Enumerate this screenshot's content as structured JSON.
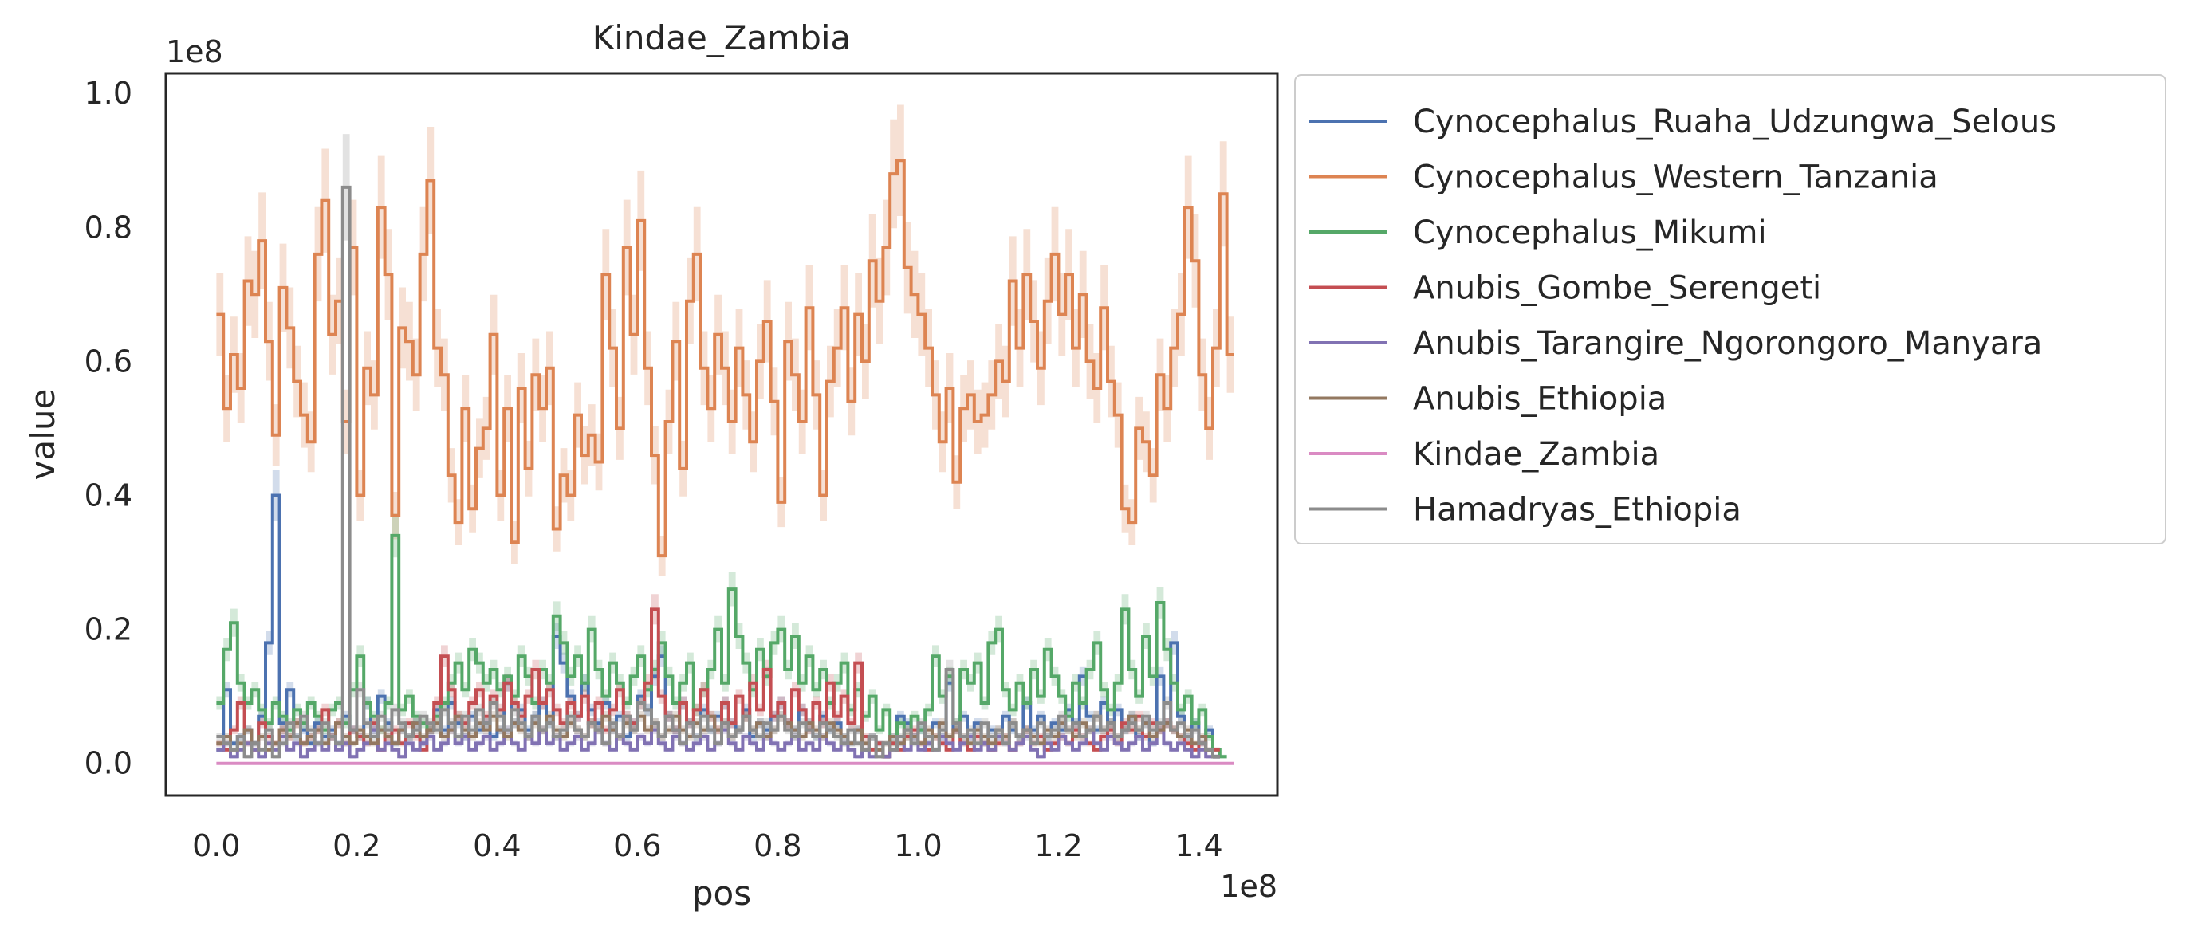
{
  "chart_data": {
    "type": "line",
    "title": "Kindae_Zambia",
    "xlabel": "pos",
    "ylabel": "value",
    "x_offset_label": "1e8",
    "y_offset_label": "1e8",
    "xlim": [
      -0.072,
      1.512
    ],
    "ylim": [
      -0.048,
      1.03
    ],
    "x_ticks": [
      0.0,
      0.2,
      0.4,
      0.6,
      0.8,
      1.0,
      1.2,
      1.4
    ],
    "x_tick_labels": [
      "0.0",
      "0.2",
      "0.4",
      "0.6",
      "0.8",
      "1.0",
      "1.2",
      "1.4"
    ],
    "y_ticks": [
      0.0,
      0.2,
      0.4,
      0.6,
      0.8,
      1.0
    ],
    "y_tick_labels": [
      "0.0",
      "0.2",
      "0.4",
      "0.6",
      "0.8",
      "1.0"
    ],
    "grid": false,
    "legend_position": "outside-upper-right",
    "step_width": 0.01,
    "band_fraction": 0.09,
    "series": [
      {
        "name": "Cynocephalus_Ruaha_Udzungwa_Selous",
        "color": "#4c72b0",
        "values": [
          0.02,
          0.11,
          0.03,
          0.04,
          0.05,
          0.03,
          0.07,
          0.18,
          0.4,
          0.06,
          0.11,
          0.04,
          0.05,
          0.03,
          0.06,
          0.04,
          0.05,
          0.03,
          0.07,
          0.05,
          0.04,
          0.09,
          0.05,
          0.1,
          0.06,
          0.03,
          0.05,
          0.04,
          0.06,
          0.03,
          0.05,
          0.08,
          0.05,
          0.09,
          0.06,
          0.04,
          0.07,
          0.05,
          0.06,
          0.04,
          0.05,
          0.12,
          0.06,
          0.08,
          0.05,
          0.07,
          0.09,
          0.06,
          0.19,
          0.15,
          0.1,
          0.07,
          0.12,
          0.08,
          0.06,
          0.09,
          0.05,
          0.07,
          0.04,
          0.06,
          0.1,
          0.08,
          0.13,
          0.16,
          0.07,
          0.05,
          0.09,
          0.06,
          0.04,
          0.08,
          0.05,
          0.07,
          0.09,
          0.06,
          0.05,
          0.08,
          0.04,
          0.06,
          0.05,
          0.07,
          0.09,
          0.06,
          0.05,
          0.08,
          0.06,
          0.04,
          0.07,
          0.05,
          0.06,
          0.04,
          0.03,
          0.05,
          0.02,
          0.04,
          0.03,
          0.01,
          0.04,
          0.07,
          0.06,
          0.04,
          0.05,
          0.03,
          0.06,
          0.04,
          0.12,
          0.05,
          0.07,
          0.04,
          0.06,
          0.03,
          0.05,
          0.04,
          0.07,
          0.05,
          0.04,
          0.09,
          0.05,
          0.07,
          0.04,
          0.06,
          0.05,
          0.08,
          0.06,
          0.13,
          0.07,
          0.05,
          0.09,
          0.06,
          0.08,
          0.05,
          0.07,
          0.04,
          0.06,
          0.03,
          0.13,
          0.06,
          0.18,
          0.07,
          0.04,
          0.06,
          0.03,
          0.05,
          0.01
        ]
      },
      {
        "name": "Cynocephalus_Western_Tanzania",
        "color": "#dd8452",
        "values": [
          0.67,
          0.53,
          0.61,
          0.56,
          0.72,
          0.7,
          0.78,
          0.63,
          0.49,
          0.71,
          0.65,
          0.57,
          0.52,
          0.48,
          0.76,
          0.84,
          0.64,
          0.69,
          0.51,
          0.77,
          0.4,
          0.59,
          0.55,
          0.83,
          0.73,
          0.37,
          0.65,
          0.63,
          0.58,
          0.76,
          0.87,
          0.62,
          0.58,
          0.43,
          0.36,
          0.53,
          0.38,
          0.47,
          0.5,
          0.64,
          0.4,
          0.53,
          0.33,
          0.56,
          0.44,
          0.58,
          0.53,
          0.59,
          0.35,
          0.43,
          0.4,
          0.52,
          0.46,
          0.49,
          0.45,
          0.73,
          0.62,
          0.5,
          0.77,
          0.64,
          0.81,
          0.59,
          0.46,
          0.31,
          0.51,
          0.63,
          0.44,
          0.69,
          0.76,
          0.59,
          0.53,
          0.64,
          0.59,
          0.51,
          0.62,
          0.55,
          0.48,
          0.6,
          0.66,
          0.54,
          0.39,
          0.63,
          0.58,
          0.51,
          0.68,
          0.55,
          0.4,
          0.57,
          0.62,
          0.68,
          0.54,
          0.67,
          0.6,
          0.75,
          0.69,
          0.77,
          0.88,
          0.9,
          0.74,
          0.7,
          0.67,
          0.62,
          0.55,
          0.48,
          0.56,
          0.42,
          0.53,
          0.55,
          0.51,
          0.52,
          0.55,
          0.6,
          0.57,
          0.72,
          0.62,
          0.73,
          0.66,
          0.59,
          0.69,
          0.76,
          0.67,
          0.73,
          0.62,
          0.7,
          0.6,
          0.56,
          0.68,
          0.57,
          0.52,
          0.38,
          0.36,
          0.5,
          0.48,
          0.43,
          0.58,
          0.53,
          0.62,
          0.67,
          0.83,
          0.75,
          0.58,
          0.5,
          0.62,
          0.85,
          0.61
        ]
      },
      {
        "name": "Cynocephalus_Mikumi",
        "color": "#55a868",
        "values": [
          0.09,
          0.17,
          0.21,
          0.12,
          0.09,
          0.11,
          0.08,
          0.06,
          0.09,
          0.07,
          0.05,
          0.08,
          0.06,
          0.09,
          0.07,
          0.05,
          0.08,
          0.09,
          0.06,
          0.11,
          0.16,
          0.09,
          0.07,
          0.05,
          0.09,
          0.34,
          0.08,
          0.1,
          0.07,
          0.06,
          0.05,
          0.07,
          0.09,
          0.12,
          0.15,
          0.11,
          0.17,
          0.15,
          0.12,
          0.14,
          0.11,
          0.13,
          0.1,
          0.16,
          0.13,
          0.09,
          0.14,
          0.12,
          0.22,
          0.18,
          0.13,
          0.16,
          0.12,
          0.2,
          0.14,
          0.1,
          0.15,
          0.12,
          0.09,
          0.13,
          0.16,
          0.11,
          0.14,
          0.18,
          0.13,
          0.09,
          0.12,
          0.15,
          0.08,
          0.11,
          0.14,
          0.2,
          0.12,
          0.26,
          0.19,
          0.15,
          0.11,
          0.17,
          0.13,
          0.18,
          0.2,
          0.14,
          0.19,
          0.12,
          0.16,
          0.11,
          0.14,
          0.09,
          0.12,
          0.15,
          0.08,
          0.11,
          0.07,
          0.1,
          0.05,
          0.08,
          0.03,
          0.06,
          0.04,
          0.07,
          0.05,
          0.08,
          0.16,
          0.1,
          0.13,
          0.06,
          0.14,
          0.12,
          0.15,
          0.09,
          0.18,
          0.2,
          0.11,
          0.08,
          0.12,
          0.09,
          0.14,
          0.1,
          0.17,
          0.13,
          0.1,
          0.07,
          0.12,
          0.09,
          0.14,
          0.18,
          0.11,
          0.08,
          0.12,
          0.23,
          0.14,
          0.1,
          0.19,
          0.13,
          0.24,
          0.17,
          0.12,
          0.08,
          0.1,
          0.06,
          0.08,
          0.04,
          0.02,
          0.01
        ]
      },
      {
        "name": "Anubis_Gombe_Serengeti",
        "color": "#c44e52",
        "values": [
          0.03,
          0.02,
          0.05,
          0.09,
          0.03,
          0.02,
          0.06,
          0.04,
          0.03,
          0.05,
          0.04,
          0.06,
          0.03,
          0.04,
          0.05,
          0.08,
          0.04,
          0.06,
          0.03,
          0.05,
          0.04,
          0.03,
          0.06,
          0.02,
          0.04,
          0.05,
          0.03,
          0.06,
          0.04,
          0.02,
          0.05,
          0.09,
          0.16,
          0.11,
          0.07,
          0.06,
          0.09,
          0.11,
          0.07,
          0.1,
          0.08,
          0.12,
          0.09,
          0.07,
          0.1,
          0.14,
          0.09,
          0.11,
          0.08,
          0.06,
          0.09,
          0.07,
          0.1,
          0.06,
          0.09,
          0.05,
          0.08,
          0.11,
          0.07,
          0.06,
          0.09,
          0.12,
          0.23,
          0.1,
          0.07,
          0.05,
          0.09,
          0.06,
          0.08,
          0.11,
          0.07,
          0.05,
          0.09,
          0.06,
          0.1,
          0.07,
          0.12,
          0.08,
          0.14,
          0.07,
          0.09,
          0.06,
          0.11,
          0.08,
          0.05,
          0.09,
          0.06,
          0.12,
          0.07,
          0.1,
          0.06,
          0.15,
          0.04,
          0.02,
          0.03,
          0.01,
          0.03,
          0.02,
          0.04,
          0.05,
          0.03,
          0.02,
          0.04,
          0.03,
          0.02,
          0.05,
          0.03,
          0.02,
          0.04,
          0.03,
          0.02,
          0.03,
          0.04,
          0.02,
          0.03,
          0.05,
          0.03,
          0.04,
          0.02,
          0.03,
          0.04,
          0.03,
          0.05,
          0.04,
          0.03,
          0.02,
          0.04,
          0.05,
          0.03,
          0.06,
          0.05,
          0.07,
          0.04,
          0.06,
          0.05,
          0.06,
          0.05,
          0.04,
          0.03,
          0.02,
          0.03,
          0.02,
          0.02
        ]
      },
      {
        "name": "Anubis_Tarangire_Ngorongoro_Manyara",
        "color": "#8172b3",
        "values": [
          0.02,
          0.03,
          0.01,
          0.02,
          0.03,
          0.02,
          0.01,
          0.03,
          0.02,
          0.04,
          0.02,
          0.03,
          0.01,
          0.02,
          0.03,
          0.02,
          0.04,
          0.02,
          0.03,
          0.01,
          0.02,
          0.03,
          0.05,
          0.02,
          0.03,
          0.02,
          0.01,
          0.03,
          0.02,
          0.03,
          0.04,
          0.02,
          0.03,
          0.05,
          0.03,
          0.04,
          0.02,
          0.03,
          0.04,
          0.02,
          0.03,
          0.05,
          0.03,
          0.02,
          0.04,
          0.03,
          0.05,
          0.03,
          0.04,
          0.02,
          0.03,
          0.04,
          0.02,
          0.03,
          0.05,
          0.03,
          0.02,
          0.04,
          0.03,
          0.02,
          0.04,
          0.03,
          0.05,
          0.03,
          0.02,
          0.04,
          0.03,
          0.02,
          0.03,
          0.04,
          0.02,
          0.03,
          0.05,
          0.03,
          0.02,
          0.04,
          0.03,
          0.02,
          0.04,
          0.03,
          0.02,
          0.03,
          0.04,
          0.02,
          0.03,
          0.02,
          0.04,
          0.03,
          0.02,
          0.03,
          0.02,
          0.01,
          0.02,
          0.01,
          0.02,
          0.01,
          0.02,
          0.03,
          0.02,
          0.04,
          0.02,
          0.03,
          0.02,
          0.04,
          0.03,
          0.02,
          0.03,
          0.04,
          0.02,
          0.03,
          0.02,
          0.04,
          0.03,
          0.02,
          0.03,
          0.04,
          0.02,
          0.01,
          0.03,
          0.02,
          0.04,
          0.03,
          0.02,
          0.03,
          0.05,
          0.03,
          0.02,
          0.04,
          0.03,
          0.02,
          0.03,
          0.04,
          0.02,
          0.03,
          0.05,
          0.03,
          0.02,
          0.03,
          0.02,
          0.01,
          0.02,
          0.01,
          0.01
        ]
      },
      {
        "name": "Anubis_Ethiopia",
        "color": "#937860",
        "values": [
          0.03,
          0.04,
          0.02,
          0.03,
          0.05,
          0.03,
          0.04,
          0.02,
          0.03,
          0.05,
          0.04,
          0.06,
          0.03,
          0.04,
          0.05,
          0.03,
          0.04,
          0.06,
          0.04,
          0.03,
          0.05,
          0.04,
          0.03,
          0.05,
          0.04,
          0.03,
          0.05,
          0.04,
          0.06,
          0.04,
          0.05,
          0.06,
          0.04,
          0.05,
          0.07,
          0.05,
          0.04,
          0.06,
          0.05,
          0.07,
          0.05,
          0.04,
          0.06,
          0.05,
          0.04,
          0.06,
          0.05,
          0.07,
          0.05,
          0.04,
          0.06,
          0.05,
          0.04,
          0.06,
          0.05,
          0.07,
          0.05,
          0.04,
          0.06,
          0.05,
          0.07,
          0.05,
          0.06,
          0.04,
          0.05,
          0.07,
          0.05,
          0.04,
          0.06,
          0.05,
          0.07,
          0.05,
          0.06,
          0.04,
          0.05,
          0.07,
          0.05,
          0.06,
          0.04,
          0.05,
          0.07,
          0.06,
          0.05,
          0.04,
          0.06,
          0.05,
          0.04,
          0.06,
          0.05,
          0.04,
          0.03,
          0.05,
          0.03,
          0.04,
          0.02,
          0.03,
          0.04,
          0.03,
          0.05,
          0.04,
          0.03,
          0.05,
          0.04,
          0.06,
          0.04,
          0.05,
          0.04,
          0.03,
          0.05,
          0.04,
          0.03,
          0.05,
          0.04,
          0.06,
          0.04,
          0.05,
          0.04,
          0.03,
          0.05,
          0.04,
          0.06,
          0.05,
          0.04,
          0.06,
          0.05,
          0.07,
          0.05,
          0.06,
          0.04,
          0.05,
          0.07,
          0.05,
          0.06,
          0.04,
          0.05,
          0.06,
          0.05,
          0.04,
          0.05,
          0.03,
          0.04,
          0.02,
          0.01
        ]
      },
      {
        "name": "Kindae_Zambia",
        "color": "#da8bc3",
        "values": [
          0.0,
          0.0,
          0.0,
          0.0,
          0.0,
          0.0,
          0.0,
          0.0,
          0.0,
          0.0,
          0.0,
          0.0,
          0.0,
          0.0,
          0.0,
          0.0,
          0.0,
          0.0,
          0.0,
          0.0,
          0.0,
          0.0,
          0.0,
          0.0,
          0.0,
          0.0,
          0.0,
          0.0,
          0.0,
          0.0,
          0.0,
          0.0,
          0.0,
          0.0,
          0.0,
          0.0,
          0.0,
          0.0,
          0.0,
          0.0,
          0.0,
          0.0,
          0.0,
          0.0,
          0.0,
          0.0,
          0.0,
          0.0,
          0.0,
          0.0,
          0.0,
          0.0,
          0.0,
          0.0,
          0.0,
          0.0,
          0.0,
          0.0,
          0.0,
          0.0,
          0.0,
          0.0,
          0.0,
          0.0,
          0.0,
          0.0,
          0.0,
          0.0,
          0.0,
          0.0,
          0.0,
          0.0,
          0.0,
          0.0,
          0.0,
          0.0,
          0.0,
          0.0,
          0.0,
          0.0,
          0.0,
          0.0,
          0.0,
          0.0,
          0.0,
          0.0,
          0.0,
          0.0,
          0.0,
          0.0,
          0.0,
          0.0,
          0.0,
          0.0,
          0.0,
          0.0,
          0.0,
          0.0,
          0.0,
          0.0,
          0.0,
          0.0,
          0.0,
          0.0,
          0.0,
          0.0,
          0.0,
          0.0,
          0.0,
          0.0,
          0.0,
          0.0,
          0.0,
          0.0,
          0.0,
          0.0,
          0.0,
          0.0,
          0.0,
          0.0,
          0.0,
          0.0,
          0.0,
          0.0,
          0.0,
          0.0,
          0.0,
          0.0,
          0.0,
          0.0,
          0.0,
          0.0,
          0.0,
          0.0,
          0.0,
          0.0,
          0.0,
          0.0,
          0.0,
          0.0,
          0.0,
          0.0,
          0.0,
          0.0,
          0.0
        ]
      },
      {
        "name": "Hamadryas_Ethiopia",
        "color": "#8c8c8c",
        "values": [
          0.04,
          0.03,
          0.02,
          0.04,
          0.01,
          0.03,
          0.02,
          0.05,
          0.01,
          0.03,
          0.06,
          0.04,
          0.07,
          0.05,
          0.03,
          0.06,
          0.04,
          0.03,
          0.86,
          0.05,
          0.11,
          0.06,
          0.04,
          0.07,
          0.05,
          0.08,
          0.06,
          0.04,
          0.05,
          0.07,
          0.06,
          0.05,
          0.08,
          0.06,
          0.04,
          0.07,
          0.05,
          0.08,
          0.06,
          0.09,
          0.07,
          0.05,
          0.08,
          0.06,
          0.04,
          0.07,
          0.05,
          0.06,
          0.04,
          0.05,
          0.07,
          0.05,
          0.04,
          0.06,
          0.05,
          0.03,
          0.06,
          0.04,
          0.07,
          0.05,
          0.09,
          0.08,
          0.06,
          0.04,
          0.07,
          0.05,
          0.03,
          0.06,
          0.04,
          0.07,
          0.05,
          0.03,
          0.06,
          0.04,
          0.05,
          0.07,
          0.05,
          0.04,
          0.06,
          0.05,
          0.07,
          0.05,
          0.04,
          0.06,
          0.05,
          0.04,
          0.06,
          0.05,
          0.04,
          0.03,
          0.05,
          0.03,
          0.02,
          0.04,
          0.01,
          0.03,
          0.02,
          0.04,
          0.05,
          0.03,
          0.06,
          0.04,
          0.02,
          0.05,
          0.14,
          0.06,
          0.04,
          0.05,
          0.03,
          0.06,
          0.04,
          0.05,
          0.03,
          0.06,
          0.04,
          0.05,
          0.03,
          0.06,
          0.04,
          0.05,
          0.07,
          0.05,
          0.06,
          0.04,
          0.05,
          0.07,
          0.05,
          0.06,
          0.04,
          0.05,
          0.06,
          0.05,
          0.07,
          0.05,
          0.06,
          0.09,
          0.05,
          0.06,
          0.04,
          0.05,
          0.03,
          0.02,
          0.01
        ]
      }
    ]
  }
}
